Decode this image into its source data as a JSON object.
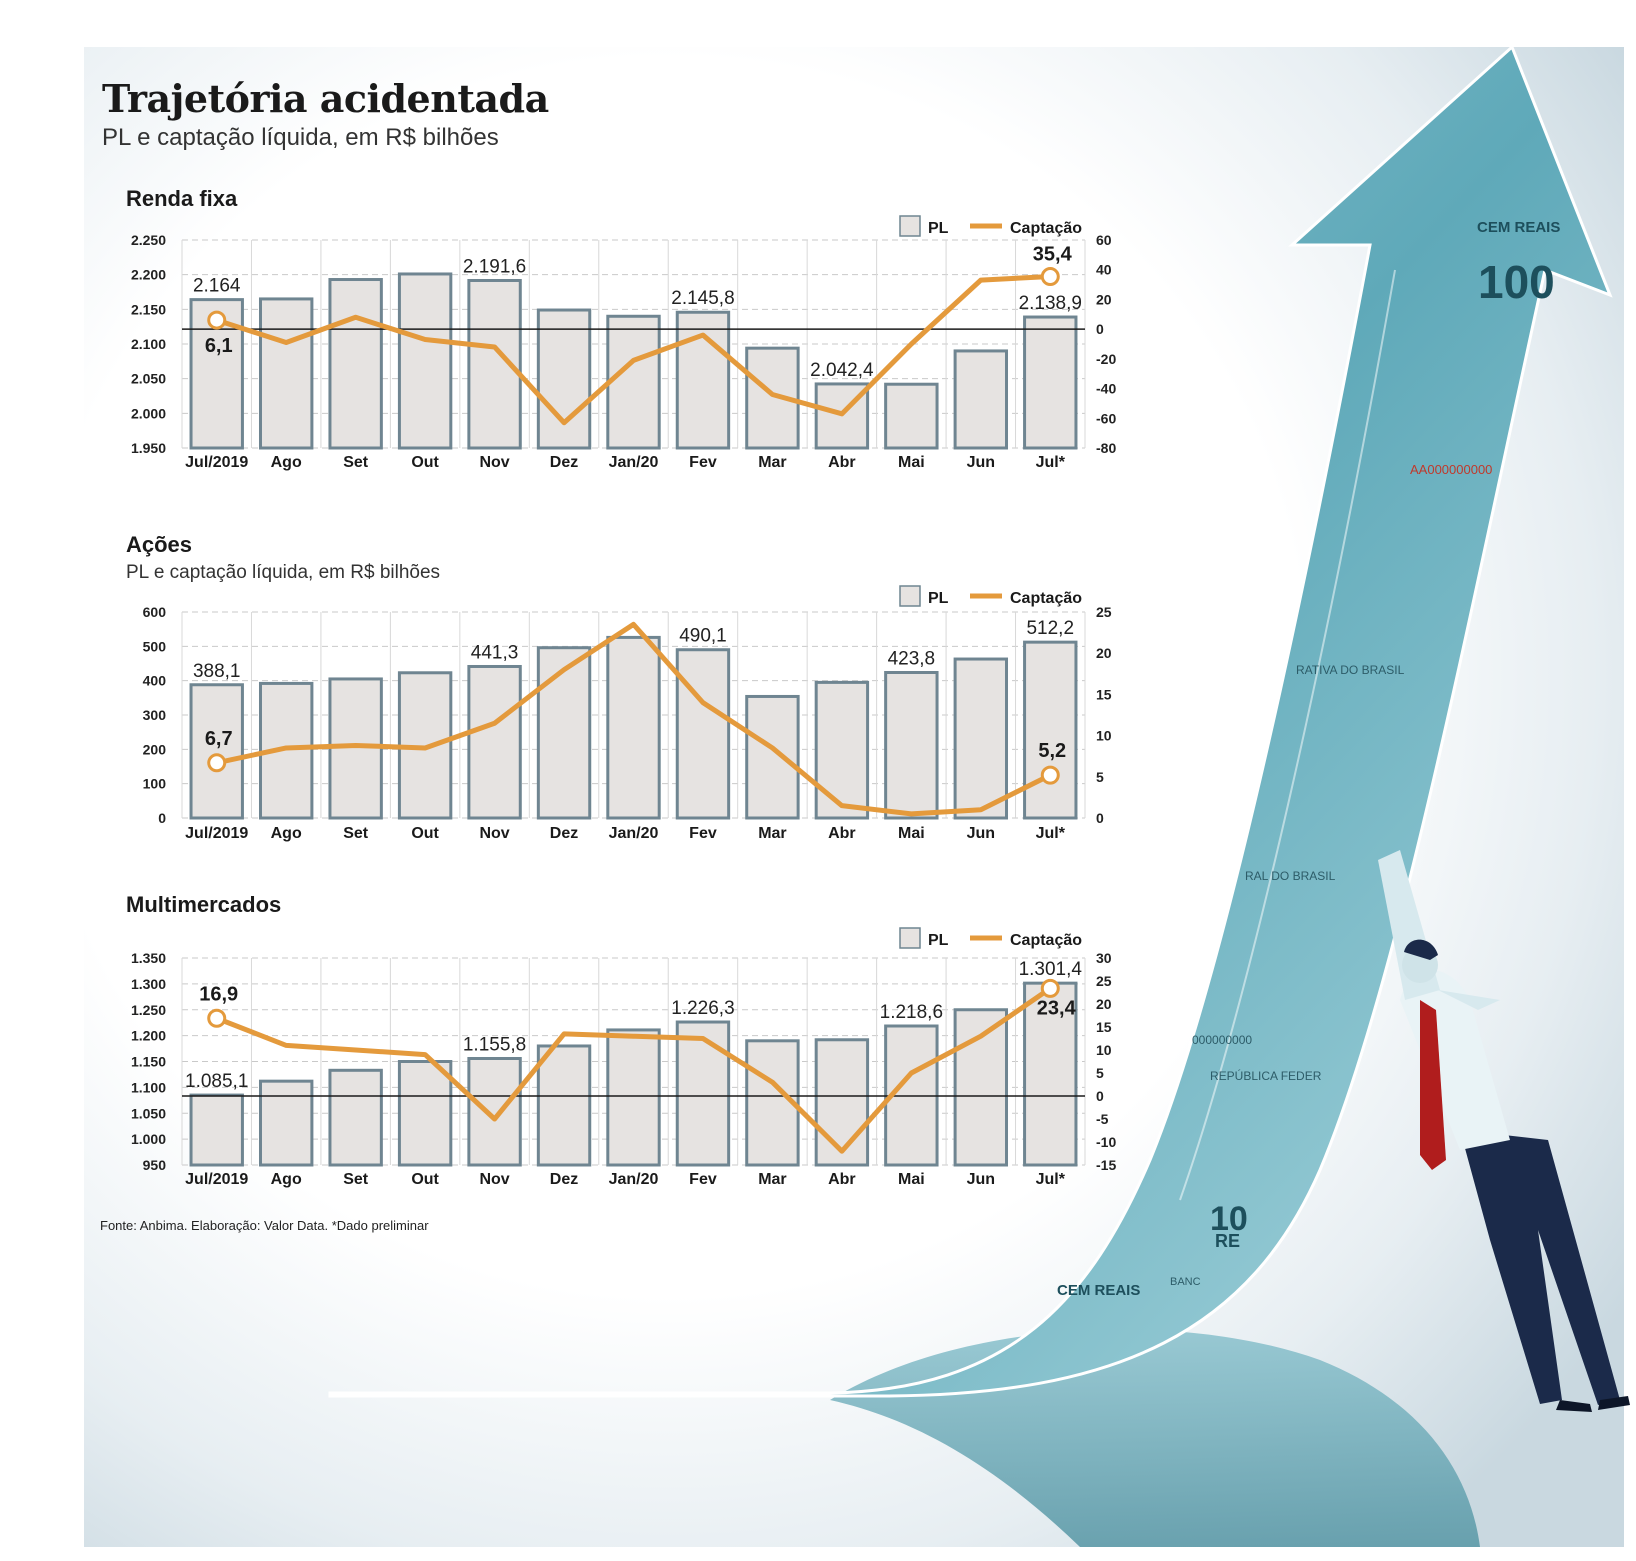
{
  "header": {
    "title": "Trajetória acidentada",
    "subtitle": "PL e captação líquida, em R$ bilhões"
  },
  "source": "Fonte: Anbima. Elaboração: Valor Data. *Dado preliminar",
  "colors": {
    "bar_fill": "#e6e3e1",
    "bar_stroke": "#6f8591",
    "line": "#e49a3c",
    "background": "#dce6ec"
  },
  "illustration": {
    "banknote_texts": [
      "CEM REAIS",
      "100",
      "AA000000000",
      "RATIVA DO BRASIL",
      "RAL DO BRASIL",
      "000000000",
      "REPÚBLICA FEDER",
      "10",
      "RE",
      "BANC",
      "CEM REAIS"
    ]
  },
  "chart_data": [
    {
      "type": "bar",
      "title": "Renda fixa",
      "subtitle": "",
      "categories": [
        "Jul/2019",
        "Ago",
        "Set",
        "Out",
        "Nov",
        "Dez",
        "Jan/20",
        "Fev",
        "Mar",
        "Abr",
        "Mai",
        "Jun",
        "Jul*"
      ],
      "series": [
        {
          "name": "PL",
          "type": "bar",
          "axis": "left",
          "values": [
            2164,
            2165,
            2193,
            2201,
            2191.6,
            2149,
            2140,
            2145.8,
            2094,
            2042.4,
            2042,
            2090,
            2138.9
          ]
        },
        {
          "name": "Captação",
          "type": "line",
          "axis": "right",
          "values": [
            6.1,
            -9,
            8,
            -7,
            -12,
            -63,
            -21,
            -4,
            -44,
            -57,
            -10,
            33,
            35.4
          ]
        }
      ],
      "bar_labels": [
        {
          "index": 0,
          "text": "2.164"
        },
        {
          "index": 4,
          "text": "2.191,6"
        },
        {
          "index": 7,
          "text": "2.145,8"
        },
        {
          "index": 9,
          "text": "2.042,4"
        },
        {
          "index": 12,
          "text": "2.138,9"
        }
      ],
      "line_labels": [
        {
          "index": 0,
          "text": "6,1"
        },
        {
          "index": 12,
          "text": "35,4"
        }
      ],
      "legend": [
        "PL",
        "Captação"
      ],
      "left_ticks": [
        "1.950",
        "2.000",
        "2.050",
        "2.100",
        "2.150",
        "2.200",
        "2.250"
      ],
      "right_ticks": [
        "-80",
        "-60",
        "-40",
        "-20",
        "0",
        "20",
        "40",
        "60"
      ],
      "ylim_left": [
        1950,
        2250
      ],
      "ylim_right": [
        -80,
        60
      ],
      "zero_line": true
    },
    {
      "type": "bar",
      "title": "Ações",
      "subtitle": "PL e captação líquida, em R$ bilhões",
      "categories": [
        "Jul/2019",
        "Ago",
        "Set",
        "Out",
        "Nov",
        "Dez",
        "Jan/20",
        "Fev",
        "Mar",
        "Abr",
        "Mai",
        "Jun",
        "Jul*"
      ],
      "series": [
        {
          "name": "PL",
          "type": "bar",
          "axis": "left",
          "values": [
            388.1,
            392,
            405,
            423,
            441.3,
            496,
            526,
            490.1,
            354,
            395,
            423.8,
            463,
            512.2
          ]
        },
        {
          "name": "Captação",
          "type": "line",
          "axis": "right",
          "values": [
            6.7,
            8.5,
            8.8,
            8.5,
            11.5,
            18,
            23.5,
            14,
            8.5,
            1.5,
            0.5,
            1,
            5.2
          ]
        }
      ],
      "bar_labels": [
        {
          "index": 0,
          "text": "388,1"
        },
        {
          "index": 4,
          "text": "441,3"
        },
        {
          "index": 7,
          "text": "490,1"
        },
        {
          "index": 10,
          "text": "423,8"
        },
        {
          "index": 12,
          "text": "512,2"
        }
      ],
      "line_labels": [
        {
          "index": 0,
          "text": "6,7"
        },
        {
          "index": 12,
          "text": "5,2"
        }
      ],
      "legend": [
        "PL",
        "Captação"
      ],
      "left_ticks": [
        "0",
        "100",
        "200",
        "300",
        "400",
        "500",
        "600"
      ],
      "right_ticks": [
        "0",
        "5",
        "10",
        "15",
        "20",
        "25"
      ],
      "ylim_left": [
        0,
        600
      ],
      "ylim_right": [
        0,
        25
      ],
      "zero_line": false
    },
    {
      "type": "bar",
      "title": "Multimercados",
      "subtitle": "",
      "categories": [
        "Jul/2019",
        "Ago",
        "Set",
        "Out",
        "Nov",
        "Dez",
        "Jan/20",
        "Fev",
        "Mar",
        "Abr",
        "Mai",
        "Jun",
        "Jul*"
      ],
      "series": [
        {
          "name": "PL",
          "type": "bar",
          "axis": "left",
          "values": [
            1085.1,
            1112,
            1133,
            1150,
            1155.8,
            1180,
            1211,
            1226.3,
            1190,
            1192,
            1218.6,
            1250,
            1301.4
          ]
        },
        {
          "name": "Captação",
          "type": "line",
          "axis": "right",
          "values": [
            16.9,
            11,
            10,
            9,
            -5,
            13.5,
            13,
            12.5,
            3,
            -12,
            5,
            13,
            23.4
          ]
        }
      ],
      "bar_labels": [
        {
          "index": 0,
          "text": "1.085,1"
        },
        {
          "index": 4,
          "text": "1.155,8"
        },
        {
          "index": 7,
          "text": "1.226,3"
        },
        {
          "index": 10,
          "text": "1.218,6"
        },
        {
          "index": 12,
          "text": "1.301,4"
        }
      ],
      "line_labels": [
        {
          "index": 0,
          "text": "16,9"
        },
        {
          "index": 12,
          "text": "23,4"
        }
      ],
      "legend": [
        "PL",
        "Captação"
      ],
      "left_ticks": [
        "950",
        "1.000",
        "1.050",
        "1.100",
        "1.150",
        "1.200",
        "1.250",
        "1.300",
        "1.350"
      ],
      "right_ticks": [
        "-15",
        "-10",
        "-5",
        "0",
        "5",
        "10",
        "15",
        "20",
        "25",
        "30"
      ],
      "ylim_left": [
        950,
        1350
      ],
      "ylim_right": [
        -15,
        30
      ],
      "zero_line": true
    }
  ]
}
